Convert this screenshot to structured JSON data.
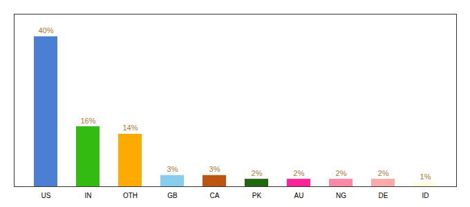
{
  "chart_data": {
    "type": "bar",
    "categories": [
      "US",
      "IN",
      "OTH",
      "GB",
      "CA",
      "PK",
      "AU",
      "NG",
      "DE",
      "ID"
    ],
    "values": [
      40,
      16,
      14,
      3,
      3,
      2,
      2,
      2,
      2,
      1
    ],
    "value_labels": [
      "40%",
      "16%",
      "14%",
      "3%",
      "3%",
      "2%",
      "2%",
      "2%",
      "2%",
      "1%"
    ],
    "colors": [
      "#4A7FD4",
      "#33BB11",
      "#FFAA00",
      "#88CCEE",
      "#BB5511",
      "#226611",
      "#FF2299",
      "#FF88AA",
      "#FFAAAA",
      "#FFFFDD"
    ],
    "ylim": [
      0,
      46
    ],
    "data_labels": true,
    "tick_labels": "x"
  }
}
